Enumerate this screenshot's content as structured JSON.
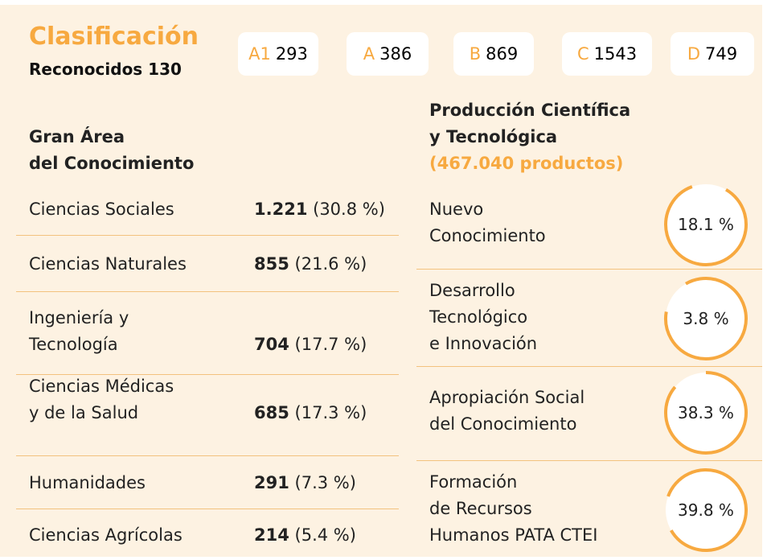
{
  "header": {
    "title": "Clasificación",
    "subtitle": "Reconocidos 130"
  },
  "badges": [
    {
      "label": "A1",
      "value": "293"
    },
    {
      "label": "A",
      "value": "386"
    },
    {
      "label": "B",
      "value": "869"
    },
    {
      "label": "C",
      "value": "1543"
    },
    {
      "label": "D",
      "value": "749"
    }
  ],
  "areas": {
    "title": [
      "Gran Área",
      "del Conocimiento"
    ],
    "rows": [
      {
        "name": [
          "Ciencias Sociales"
        ],
        "count": "1.221",
        "pct": "(30.8 %)"
      },
      {
        "name": [
          "Ciencias Naturales"
        ],
        "count": "855",
        "pct": "(21.6 %)"
      },
      {
        "name": [
          "Ingeniería y",
          "Tecnología"
        ],
        "count": "704",
        "pct": "(17.7 %)"
      },
      {
        "name": [
          "Ciencias Médicas",
          "y de la Salud"
        ],
        "count": "685",
        "pct": "(17.3 %)"
      },
      {
        "name": [
          "Humanidades"
        ],
        "count": "291",
        "pct": "(7.3 %)"
      },
      {
        "name": [
          "Ciencias Agrícolas"
        ],
        "count": "214",
        "pct": "(5.4 %)"
      }
    ]
  },
  "production": {
    "title": [
      "Producción Científica",
      "y Tecnológica"
    ],
    "total": "(467.040 productos)",
    "items": [
      {
        "name": [
          "Nuevo",
          "Conocimiento"
        ],
        "pct": "18.1 %"
      },
      {
        "name": [
          "Desarrollo",
          "Tecnológico",
          "e Innovación"
        ],
        "pct": "3.8 %"
      },
      {
        "name": [
          "Apropiación Social",
          "del Conocimiento"
        ],
        "pct": "38.3 %"
      },
      {
        "name": [
          "Formación",
          "de Recursos",
          "Humanos PATA CTEI"
        ],
        "pct": "39.8 %"
      }
    ]
  }
}
